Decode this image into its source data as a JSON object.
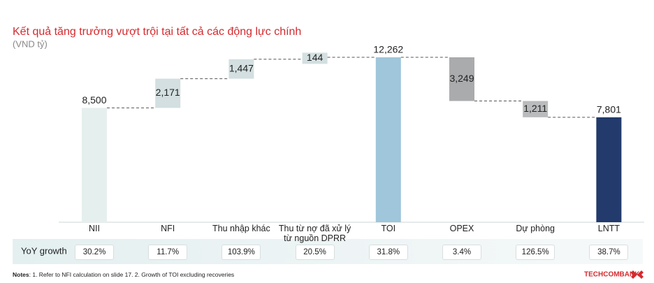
{
  "chart_data": {
    "type": "waterfall",
    "title": "Kết quả tăng trưởng vượt trội tại tất cả các động lực chính",
    "subtitle": "(VND tỷ)",
    "categories": [
      "NII",
      "NFI",
      "Thu nhập khác",
      "Thu từ nợ đã xử lý từ nguồn DPRR",
      "TOI",
      "OPEX",
      "Dự phòng",
      "LNTT"
    ],
    "values": [
      8500,
      2171,
      1447,
      144,
      12262,
      3249,
      1211,
      7801
    ],
    "value_labels": [
      "8,500",
      "2,171",
      "1,447",
      "144",
      "12,262",
      "3,249",
      "1,211",
      "7,801"
    ],
    "measures": [
      "total",
      "increase",
      "increase",
      "increase",
      "total",
      "decrease",
      "decrease",
      "total"
    ],
    "colors": [
      "#e5efee",
      "#d3dfe0",
      "#d3dfe0",
      "#d3dfe0",
      "#9fc6da",
      "#a9abac",
      "#b9bbbc",
      "#223b6c"
    ],
    "growth": {
      "label": "YoY growth",
      "values": [
        "30.2%",
        "11.7%",
        "103.9%",
        "20.5%",
        "31.8%",
        "3.4%",
        "126.5%",
        "38.7%"
      ]
    },
    "notes": {
      "label": "Notes",
      "text": ": 1. Refer to NFI calculation on slide 17. 2. Growth of TOI excluding recoveries"
    },
    "logo": "TECHCOMBANK"
  }
}
